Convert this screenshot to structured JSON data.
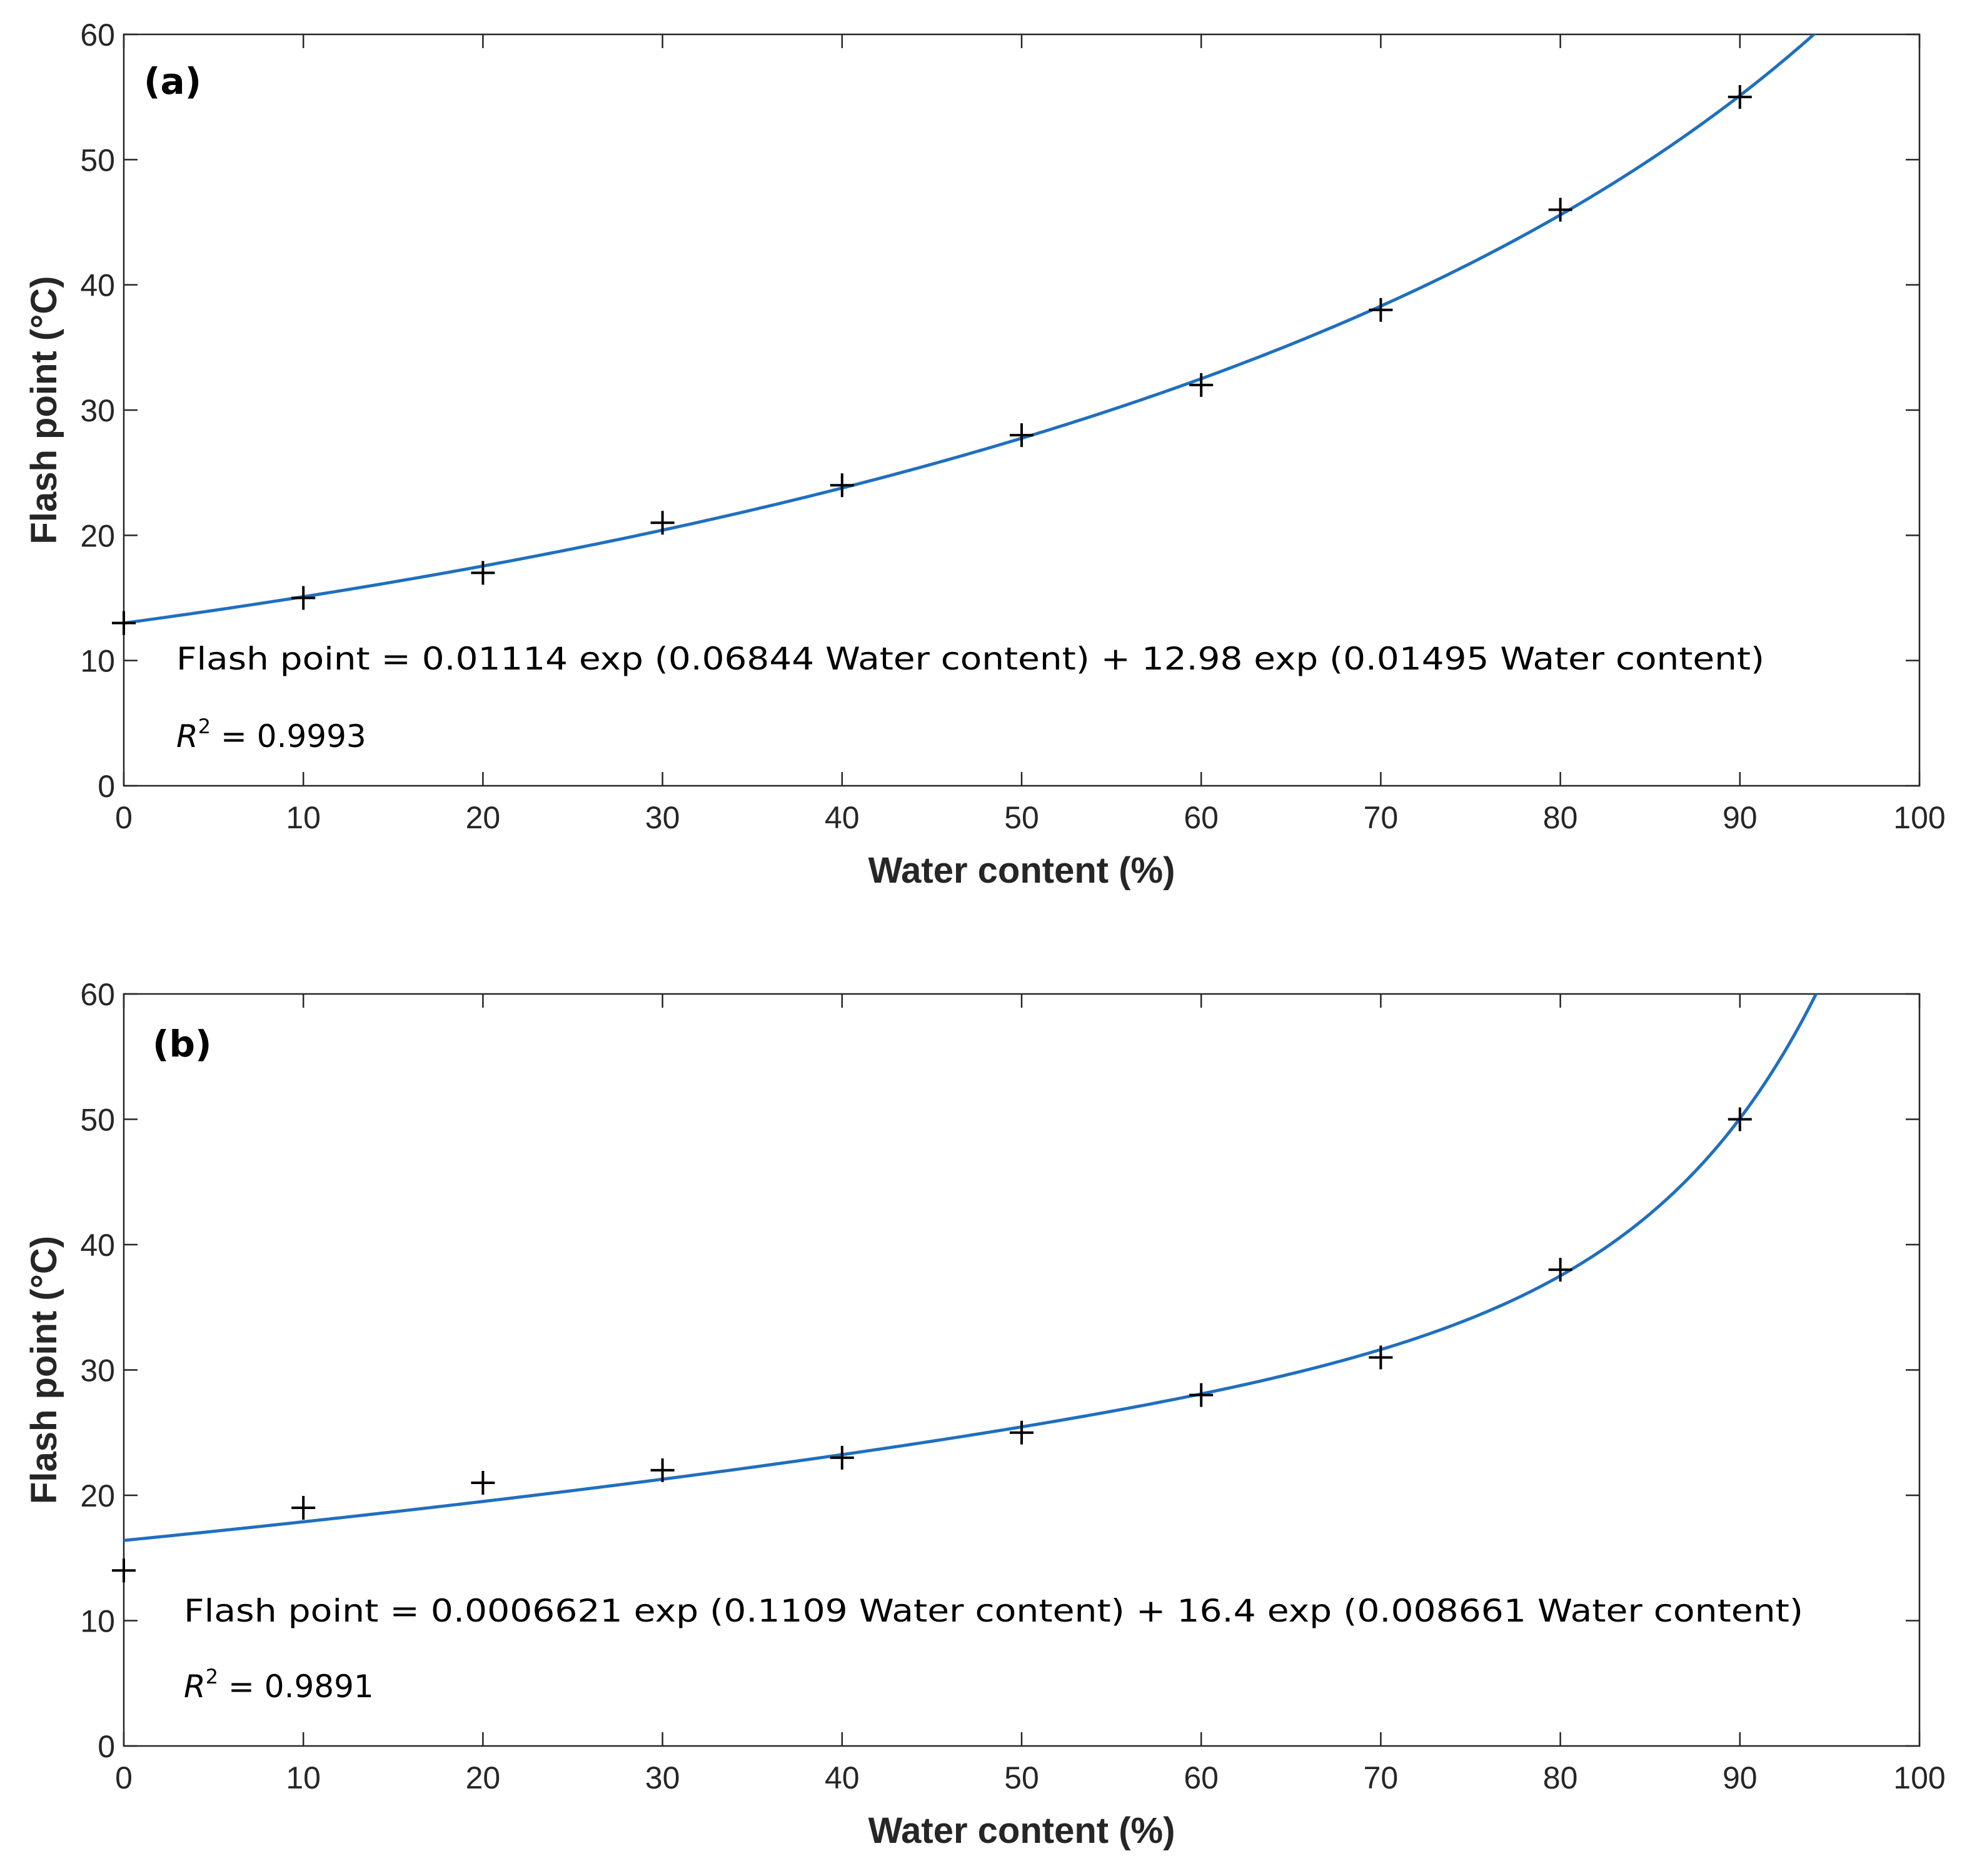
{
  "chart_data": [
    {
      "type": "scatter",
      "panel_label": "(a)",
      "xlabel": "Water content (%)",
      "ylabel": "Flash point (°C)",
      "xlim": [
        0,
        100
      ],
      "ylim": [
        0,
        60
      ],
      "xticks": [
        0,
        10,
        20,
        30,
        40,
        50,
        60,
        70,
        80,
        90,
        100
      ],
      "yticks": [
        0,
        10,
        20,
        30,
        40,
        50,
        60
      ],
      "grid": false,
      "series": [
        {
          "kind": "markers",
          "marker": "plus",
          "color": "#000000",
          "x": [
            0,
            10,
            20,
            30,
            40,
            50,
            60,
            70,
            80,
            90
          ],
          "y": [
            13,
            15,
            17,
            21,
            24,
            28,
            32,
            38,
            46,
            55
          ]
        },
        {
          "kind": "fit-line",
          "color": "#1f6fbf",
          "fit": {
            "a": 0.01114,
            "b": 0.06844,
            "c": 12.98,
            "d": 0.01495
          }
        }
      ],
      "annotations": {
        "equation": "Flash point = 0.01114 exp (0.06844 Water content) + 12.98 exp (0.01495 Water content)",
        "r2_symbol": "R",
        "r2_exponent": "2",
        "r2_value": " = 0.9993"
      }
    },
    {
      "type": "scatter",
      "panel_label": "(b)",
      "xlabel": "Water content (%)",
      "ylabel": "Flash point (°C)",
      "xlim": [
        0,
        100
      ],
      "ylim": [
        0,
        60
      ],
      "xticks": [
        0,
        10,
        20,
        30,
        40,
        50,
        60,
        70,
        80,
        90,
        100
      ],
      "yticks": [
        0,
        10,
        20,
        30,
        40,
        50,
        60
      ],
      "grid": false,
      "series": [
        {
          "kind": "markers",
          "marker": "plus",
          "color": "#000000",
          "x": [
            0,
            10,
            20,
            30,
            40,
            50,
            60,
            70,
            80,
            90
          ],
          "y": [
            14,
            19,
            21,
            22,
            23,
            25,
            28,
            31,
            38,
            50
          ]
        },
        {
          "kind": "fit-line",
          "color": "#1f6fbf",
          "fit": {
            "a": 0.0006621,
            "b": 0.1109,
            "c": 16.4,
            "d": 0.008661
          }
        }
      ],
      "annotations": {
        "equation": "Flash point = 0.0006621 exp (0.1109 Water content) + 16.4 exp (0.008661 Water content)",
        "r2_symbol": "R",
        "r2_exponent": "2",
        "r2_value": " = 0.9891"
      }
    }
  ]
}
